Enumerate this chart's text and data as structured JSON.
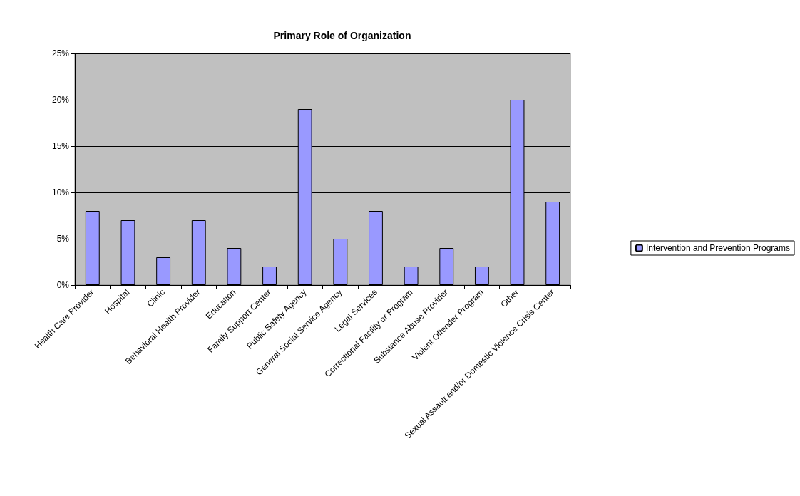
{
  "chart_data": {
    "type": "bar",
    "title": "Primary Role of Organization",
    "categories": [
      "Health Care Provider",
      "Hospital",
      "Clinic",
      "Behavioral Health Provider",
      "Education",
      "Family Support Center",
      "Public Safety Agency",
      "General Social Service Agency",
      "Legal Services",
      "Correctional Facility or Program",
      "Substance Abuse Provider",
      "Violent Offender Program",
      "Other",
      "Sexual Assault and/or Domestic Violence Crisis Center"
    ],
    "series": [
      {
        "name": "Intervention and Prevention Programs",
        "color": "#9999ff",
        "values": [
          8,
          7,
          3,
          7,
          4,
          2,
          19,
          5,
          8,
          2,
          4,
          2,
          20,
          9
        ]
      }
    ],
    "ylim": [
      0,
      25
    ],
    "yticks": [
      {
        "value": 0,
        "label": "0%"
      },
      {
        "value": 5,
        "label": "5%"
      },
      {
        "value": 10,
        "label": "10%"
      },
      {
        "value": 15,
        "label": "15%"
      },
      {
        "value": 20,
        "label": "20%"
      },
      {
        "value": 25,
        "label": "25%"
      }
    ],
    "grid": "y",
    "legend": "right"
  }
}
